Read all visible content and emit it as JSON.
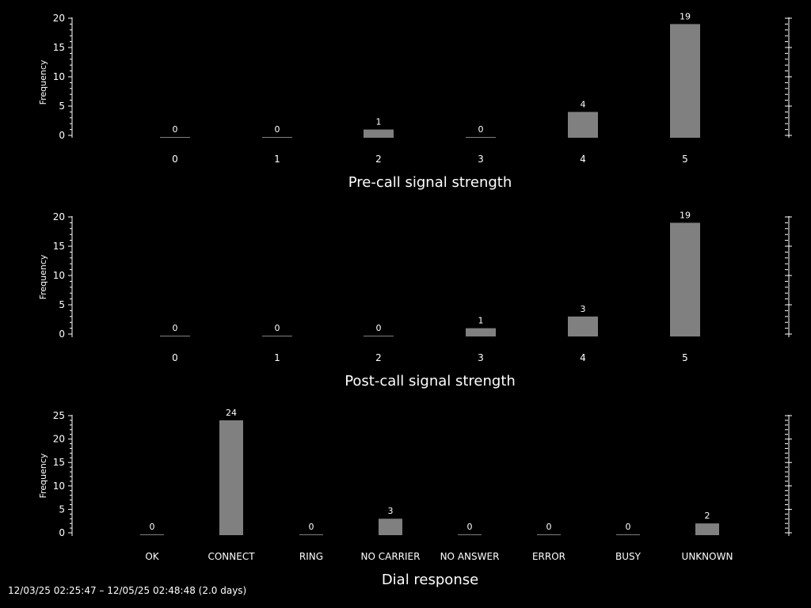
{
  "chart_data": [
    {
      "type": "bar",
      "xlabel": "Pre-call signal strength",
      "ylabel": "Frequency",
      "categories": [
        "0",
        "1",
        "2",
        "3",
        "4",
        "5"
      ],
      "values": [
        0,
        0,
        1,
        0,
        4,
        19
      ],
      "yticks": [
        0,
        5,
        10,
        15,
        20
      ],
      "ylim": [
        0,
        20
      ],
      "grid": false,
      "bar_color": "#808080"
    },
    {
      "type": "bar",
      "xlabel": "Post-call signal strength",
      "ylabel": "Frequency",
      "categories": [
        "0",
        "1",
        "2",
        "3",
        "4",
        "5"
      ],
      "values": [
        0,
        0,
        0,
        1,
        3,
        19
      ],
      "yticks": [
        0,
        5,
        10,
        15,
        20
      ],
      "ylim": [
        0,
        20
      ],
      "grid": false,
      "bar_color": "#808080"
    },
    {
      "type": "bar",
      "xlabel": "Dial response",
      "ylabel": "Frequency",
      "categories": [
        "OK",
        "CONNECT",
        "RING",
        "NO CARRIER",
        "NO ANSWER",
        "ERROR",
        "BUSY",
        "UNKNOWN"
      ],
      "values": [
        0,
        24,
        0,
        3,
        0,
        0,
        0,
        2
      ],
      "yticks": [
        0,
        5,
        10,
        15,
        20,
        25
      ],
      "ylim": [
        0,
        25
      ],
      "grid": false,
      "bar_color": "#808080"
    }
  ],
  "footer": {
    "date_range": "12/03/25 02:25:47 – 12/05/25 02:48:48 (2.0 days)"
  }
}
